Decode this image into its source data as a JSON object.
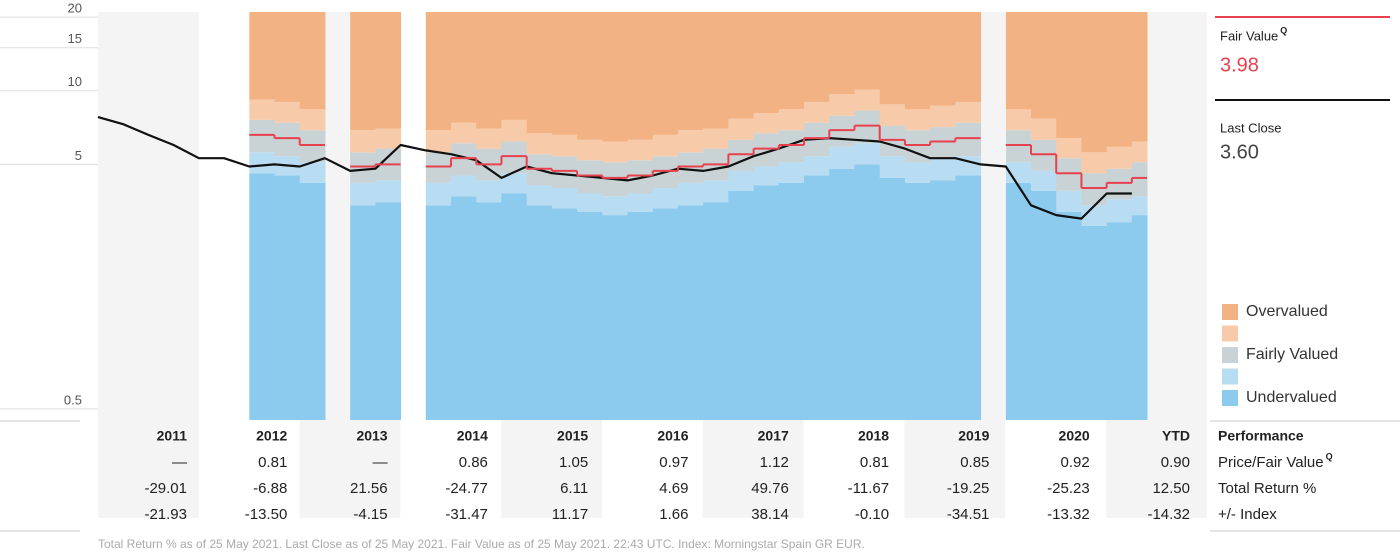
{
  "chart_data": {
    "type": "valuation",
    "yscale": "log",
    "ylim": [
      0.45,
      21
    ],
    "yticks": [
      0.5,
      5,
      10,
      15,
      20
    ],
    "xlim": [
      2011,
      2021.4
    ],
    "x": [
      2011,
      2011.25,
      2011.5,
      2011.75,
      2012,
      2012.25,
      2012.5,
      2012.75,
      2013,
      2013.25,
      2013.5,
      2013.75,
      2014,
      2014.25,
      2014.5,
      2014.75,
      2015,
      2015.25,
      2015.5,
      2015.75,
      2016,
      2016.25,
      2016.5,
      2016.75,
      2017,
      2017.25,
      2017.5,
      2017.75,
      2018,
      2018.25,
      2018.5,
      2018.75,
      2019,
      2019.25,
      2019.5,
      2019.75,
      2020,
      2020.25,
      2020.5,
      2020.75,
      2021,
      2021.25
    ],
    "series": [
      {
        "color": "#111111",
        "values": [
          7.8,
          7.3,
          6.6,
          6.0,
          5.3,
          5.3,
          4.9,
          5.0,
          4.9,
          5.3,
          4.7,
          4.8,
          6.0,
          5.7,
          5.5,
          5.2,
          4.4,
          4.9,
          4.6,
          4.5,
          4.4,
          4.3,
          4.5,
          4.8,
          4.7,
          4.9,
          5.4,
          5.8,
          6.3,
          6.4,
          6.3,
          6.2,
          5.8,
          5.3,
          5.3,
          5.0,
          4.9,
          3.4,
          3.1,
          3.0,
          3.8,
          3.8
        ]
      },
      {
        "color": "#e8414e",
        "values": [
          null,
          null,
          null,
          null,
          null,
          null,
          6.6,
          6.4,
          6.0,
          null,
          4.9,
          5.0,
          null,
          4.9,
          5.3,
          5.0,
          5.4,
          4.8,
          4.7,
          4.5,
          4.4,
          4.5,
          4.7,
          4.9,
          5.0,
          5.5,
          5.8,
          6.0,
          6.4,
          6.9,
          7.2,
          6.3,
          6.0,
          6.2,
          6.4,
          null,
          6.0,
          5.5,
          4.6,
          4.0,
          4.2,
          4.4
        ]
      }
    ],
    "bands": [
      {
        "name": "Undervalued",
        "color": "#8ccaee",
        "values": [
          null,
          null,
          null,
          null,
          null,
          null,
          4.6,
          4.5,
          4.2,
          null,
          3.4,
          3.5,
          null,
          3.4,
          3.7,
          3.5,
          3.8,
          3.4,
          3.3,
          3.2,
          3.1,
          3.2,
          3.3,
          3.4,
          3.5,
          3.9,
          4.1,
          4.2,
          4.5,
          4.8,
          5.0,
          4.4,
          4.2,
          4.3,
          4.5,
          null,
          4.2,
          3.9,
          3.2,
          2.8,
          2.9,
          3.1
        ]
      },
      {
        "color": "#b8dcf2",
        "values": [
          null,
          null,
          null,
          null,
          null,
          null,
          5.6,
          5.4,
          5.1,
          null,
          4.2,
          4.3,
          null,
          4.2,
          4.5,
          4.3,
          4.6,
          4.1,
          4.0,
          3.8,
          3.7,
          3.8,
          4.0,
          4.2,
          4.3,
          4.7,
          4.9,
          5.1,
          5.4,
          5.9,
          6.1,
          5.4,
          5.1,
          5.3,
          5.4,
          null,
          5.1,
          4.7,
          3.9,
          3.4,
          3.6,
          3.7
        ]
      },
      {
        "name": "Fairly Valued",
        "color": "#c9d3d6",
        "values": [
          null,
          null,
          null,
          null,
          null,
          null,
          7.6,
          7.4,
          6.9,
          null,
          5.6,
          5.8,
          null,
          5.6,
          6.1,
          5.8,
          6.2,
          5.5,
          5.4,
          5.2,
          5.1,
          5.2,
          5.4,
          5.6,
          5.8,
          6.3,
          6.7,
          6.9,
          7.4,
          7.9,
          8.3,
          7.2,
          6.9,
          7.1,
          7.4,
          null,
          6.9,
          6.3,
          5.3,
          4.6,
          4.8,
          5.1
        ]
      },
      {
        "color": "#f7cbaa",
        "values": [
          null,
          null,
          null,
          null,
          null,
          null,
          9.2,
          9.0,
          8.4,
          null,
          6.9,
          7.0,
          null,
          6.9,
          7.4,
          7.0,
          7.6,
          6.7,
          6.6,
          6.3,
          6.2,
          6.3,
          6.6,
          6.9,
          7.0,
          7.7,
          8.1,
          8.4,
          9.0,
          9.7,
          10.1,
          8.8,
          8.4,
          8.7,
          9.0,
          null,
          8.4,
          7.7,
          6.4,
          5.6,
          5.9,
          6.2
        ]
      },
      {
        "name": "Overvalued",
        "color": "#f3b283"
      }
    ]
  },
  "side_panel": {
    "fair_value_label": "Fair Value",
    "fair_value_mark": "Q",
    "fair_value": "3.98",
    "last_close_label": "Last Close",
    "last_close": "3.60"
  },
  "table": {
    "header_label": "Performance",
    "columns": [
      "2011",
      "2012",
      "2013",
      "2014",
      "2015",
      "2016",
      "2017",
      "2018",
      "2019",
      "2020",
      "YTD"
    ],
    "rows": [
      {
        "label": "Price/Fair Value",
        "mark": "Q",
        "cells": [
          "—",
          "0.81",
          "—",
          "0.86",
          "1.05",
          "0.97",
          "1.12",
          "0.81",
          "0.85",
          "0.92",
          "0.90"
        ]
      },
      {
        "label": "Total Return %",
        "cells": [
          "-29.01",
          "-6.88",
          "21.56",
          "-24.77",
          "6.11",
          "4.69",
          "49.76",
          "-11.67",
          "-19.25",
          "-25.23",
          "12.50"
        ]
      },
      {
        "label": "+/- Index",
        "cells": [
          "-21.93",
          "-13.50",
          "-4.15",
          "-31.47",
          "11.17",
          "1.66",
          "38.14",
          "-0.10",
          "-34.51",
          "-13.32",
          "-14.32"
        ]
      }
    ]
  },
  "footnote": "Total Return % as of 25 May 2021. Last Close as of 25 May 2021. Fair Value as of 25 May 2021. 22:43 UTC. Index: Morningstar Spain GR EUR."
}
